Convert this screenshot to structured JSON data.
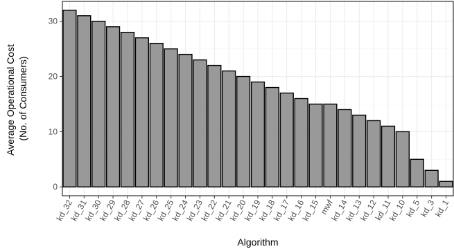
{
  "chart_data": {
    "type": "bar",
    "xlabel": "Algorithm",
    "ylabel_lines": [
      "Average Operational Cost",
      "(No. of Consumers)"
    ],
    "categories": [
      "kd_32",
      "kd_31",
      "kd_30",
      "kd_29",
      "kd_28",
      "kd_27",
      "kd_26",
      "kd_25",
      "kd_24",
      "kd_23",
      "kd_22",
      "kd_21",
      "kd_20",
      "kd_19",
      "kd_18",
      "kd_17",
      "kd_16",
      "kd_15",
      "mwf",
      "kd_14",
      "kd_13",
      "kd_12",
      "kd_11",
      "kd_10",
      "kd_5",
      "kd_3",
      "kd_1"
    ],
    "values": [
      32,
      31,
      30,
      29,
      28,
      27,
      26,
      25,
      24,
      23,
      22,
      21,
      20,
      19,
      18,
      17,
      16,
      15,
      15,
      14,
      13,
      12,
      11,
      10,
      5,
      3,
      1
    ],
    "ylim": [
      -1.6,
      33.6
    ],
    "yticks": [
      0,
      10,
      20,
      30
    ],
    "grid": true,
    "colors": {
      "bar_fill": "#999999",
      "bar_stroke": "#000000",
      "grid_major": "#ebebeb",
      "grid_minor": "#f5f5f5",
      "panel_border": "#333333"
    }
  }
}
